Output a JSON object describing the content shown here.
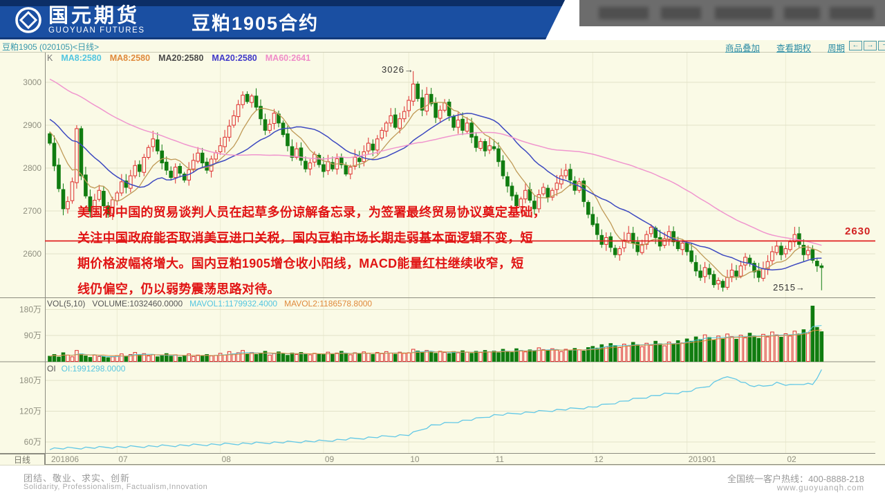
{
  "header": {
    "logo_cn": "国元期货",
    "logo_en": "GUOYUAN FUTURES",
    "title": "豆粕1905合约"
  },
  "toolbar": {
    "links": [
      {
        "label": "商品叠加"
      },
      {
        "label": "查看期权"
      },
      {
        "label": "周期"
      }
    ],
    "buttons": [
      {
        "glyph": "←"
      },
      {
        "glyph": "→"
      },
      {
        "glyph": "−"
      }
    ]
  },
  "chart_header": {
    "instrument": "豆粕1905 (020105)<日线>",
    "k_label": "K",
    "ma_labels": [
      {
        "text": "MA8:2580",
        "color": "#53C6E0"
      },
      {
        "text": "MA8:2580",
        "color": "#E08A3C"
      },
      {
        "text": "MA20:2580",
        "color": "#4A4A4A"
      },
      {
        "text": "MA20:2580",
        "color": "#4038C8"
      },
      {
        "text": "MA60:2641",
        "color": "#F08CC8"
      }
    ]
  },
  "vol_header": {
    "indicator": "VOL(5,10)",
    "volume": "VOLUME:1032460.0000",
    "mavol1": "MAVOL1:1179932.4000",
    "mavol2": "MAVOL2:1186578.8000",
    "mavol1_color": "#53C6E0",
    "mavol2_color": "#E08A3C"
  },
  "oi_header": {
    "label": "OI",
    "value": "OI:1991298.0000",
    "value_color": "#53C6E0"
  },
  "annotation": {
    "lines": [
      "美国和中国的贸易谈判人员在起草多份谅解备忘录，为签署最终贸易协议奠定基础，",
      "关注中国政府能否取消美豆进口关税，国内豆粕市场长期走弱基本面逻辑不变，短",
      "期价格波幅将增大。国内豆粕1905增仓收小阳线，MACD能量红柱继续收窄，短",
      "线仍偏空，仍以弱势震荡思路对待。"
    ]
  },
  "markers": {
    "high_value": "3026",
    "low_value": "2515",
    "support_value": "2630"
  },
  "icons": {
    "arrow_right": "→"
  },
  "axis": {
    "period_label": "日线",
    "price_ticks": [
      3000,
      2900,
      2800,
      2700,
      2600
    ],
    "vol_ticks": [
      {
        "v": 180,
        "label": "180万"
      },
      {
        "v": 90,
        "label": "90万"
      }
    ],
    "oi_ticks": [
      {
        "v": 180,
        "label": "180万"
      },
      {
        "v": 120,
        "label": "120万"
      },
      {
        "v": 60,
        "label": "60万"
      }
    ],
    "month_ticks": [
      {
        "i": 0,
        "label": "201806"
      },
      {
        "i": 15,
        "label": "07"
      },
      {
        "i": 38,
        "label": "08"
      },
      {
        "i": 61,
        "label": "09"
      },
      {
        "i": 80,
        "label": "10"
      },
      {
        "i": 99,
        "label": "11"
      },
      {
        "i": 121,
        "label": "12"
      },
      {
        "i": 142,
        "label": "201901"
      },
      {
        "i": 164,
        "label": "02"
      }
    ]
  },
  "footer": {
    "slogan_cn": "团结、敬业、求实、创新",
    "slogan_en": "Solidarity, Professionalism, Factualism,Innovation",
    "hotline": "全国统一客户热线：400-8888-218",
    "website": "www.guoyuanqh.com"
  },
  "chart_data": {
    "type": "candlestick_with_volume_and_oi",
    "title": "豆粕1905 日线",
    "price_range_visible": [
      2498,
      3043
    ],
    "marked_high": 3026,
    "marked_low": 2515,
    "support_line": 2630,
    "legend": [
      "MA8",
      "MA8",
      "MA20",
      "MA20",
      "MA60",
      "VOL(5,10)",
      "MAVOL1",
      "MAVOL2",
      "OI"
    ],
    "colors": {
      "up": "#DE2C2C",
      "down": "#107C10",
      "background": "#FAFAE6",
      "ma8_cyan": "#53C6E0",
      "ma8_khaki": "#C59B56",
      "ma20_blue": "#3D49C0",
      "ma60_pink": "#F095CE",
      "mavol1": "#53C6E0",
      "mavol2": "#E08A3C",
      "oi_line": "#62C8E6",
      "support": "#E02222"
    },
    "closes": [
      2858,
      2805,
      2752,
      2705,
      2722,
      2768,
      2892,
      2782,
      2735,
      2698,
      2725,
      2748,
      2712,
      2692,
      2726,
      2742,
      2768,
      2755,
      2782,
      2806,
      2792,
      2825,
      2848,
      2868,
      2840,
      2812,
      2795,
      2778,
      2802,
      2788,
      2772,
      2796,
      2818,
      2835,
      2812,
      2795,
      2821,
      2836,
      2852,
      2872,
      2898,
      2922,
      2948,
      2970,
      2955,
      2968,
      2942,
      2915,
      2888,
      2902,
      2928,
      2905,
      2878,
      2852,
      2825,
      2845,
      2818,
      2798,
      2812,
      2832,
      2808,
      2792,
      2815,
      2798,
      2822,
      2808,
      2786,
      2802,
      2825,
      2815,
      2838,
      2858,
      2842,
      2868,
      2888,
      2905,
      2922,
      2895,
      2915,
      2932,
      2958,
      2996,
      2962,
      2935,
      2972,
      2950,
      2918,
      2935,
      2952,
      2922,
      2895,
      2912,
      2888,
      2905,
      2872,
      2848,
      2862,
      2840,
      2852,
      2845,
      2815,
      2782,
      2758,
      2735,
      2712,
      2728,
      2748,
      2725,
      2705,
      2738,
      2755,
      2732,
      2748,
      2765,
      2782,
      2795,
      2772,
      2748,
      2768,
      2722,
      2692,
      2668,
      2645,
      2622,
      2638,
      2615,
      2598,
      2612,
      2632,
      2648,
      2625,
      2605,
      2622,
      2645,
      2662,
      2638,
      2618,
      2635,
      2652,
      2628,
      2612,
      2625,
      2605,
      2582,
      2560,
      2545,
      2568,
      2552,
      2528,
      2538,
      2522,
      2545,
      2562,
      2548,
      2572,
      2592,
      2578,
      2558,
      2545,
      2565,
      2582,
      2605,
      2618,
      2598,
      2612,
      2628,
      2645,
      2622,
      2598,
      2608,
      2585,
      2572,
      2568
    ],
    "overrides": {
      "81": {
        "high": 3026
      },
      "172": {
        "low": 2515
      }
    },
    "volumes": [
      18,
      24,
      15,
      30,
      22,
      16,
      38,
      26,
      19,
      14,
      22,
      17,
      17,
      13,
      16,
      20,
      26,
      18,
      24,
      31,
      22,
      27,
      19,
      24,
      16,
      21,
      27,
      18,
      23,
      15,
      20,
      26,
      17,
      22,
      18,
      24,
      19,
      21,
      28,
      22,
      34,
      26,
      30,
      38,
      25,
      31,
      24,
      28,
      35,
      22,
      27,
      33,
      26,
      21,
      29,
      24,
      31,
      26,
      23,
      28,
      25,
      26,
      32,
      24,
      29,
      35,
      27,
      23,
      30,
      26,
      33,
      28,
      24,
      31,
      27,
      34,
      29,
      25,
      32,
      28,
      30,
      42,
      36,
      31,
      38,
      33,
      28,
      35,
      31,
      27,
      34,
      30,
      37,
      32,
      28,
      35,
      31,
      38,
      33,
      36,
      30,
      42,
      35,
      31,
      44,
      38,
      33,
      40,
      36,
      47,
      41,
      36,
      44,
      39,
      34,
      42,
      37,
      45,
      40,
      36,
      48,
      52,
      46,
      58,
      50,
      62,
      55,
      48,
      60,
      53,
      66,
      58,
      51,
      63,
      56,
      70,
      61,
      54,
      67,
      59,
      72,
      64,
      78,
      70,
      85,
      76,
      92,
      83,
      74,
      88,
      79,
      95,
      86,
      77,
      91,
      82,
      98,
      88,
      80,
      94,
      85,
      102,
      92,
      84,
      96,
      88,
      105,
      95,
      110,
      100,
      192,
      118,
      103
    ],
    "oi_anchors": [
      [
        0,
        47
      ],
      [
        20,
        51
      ],
      [
        40,
        56
      ],
      [
        61,
        62
      ],
      [
        80,
        74
      ],
      [
        85,
        92
      ],
      [
        95,
        105
      ],
      [
        99,
        112
      ],
      [
        110,
        120
      ],
      [
        121,
        128
      ],
      [
        130,
        143
      ],
      [
        136,
        152
      ],
      [
        142,
        158
      ],
      [
        147,
        170
      ],
      [
        150,
        186
      ],
      [
        153,
        183
      ],
      [
        156,
        170
      ],
      [
        159,
        168
      ],
      [
        162,
        175
      ],
      [
        165,
        170
      ],
      [
        168,
        174
      ],
      [
        170,
        172
      ],
      [
        172,
        199
      ]
    ],
    "ma_prehistory": [
      3150,
      3145,
      3141,
      3136,
      3131,
      3127,
      3122,
      3117,
      3113,
      3108,
      3103,
      3099,
      3094,
      3089,
      3085,
      3080,
      3075,
      3071,
      3066,
      3061,
      3057,
      3052,
      3047,
      3043,
      3038,
      3033,
      3029,
      3024,
      3019,
      3015,
      3010,
      3005,
      3001,
      2996,
      2991,
      2987,
      2982,
      2977,
      2973,
      2968,
      2963,
      2959,
      2954,
      2949,
      2945,
      2940,
      2935,
      2931,
      2926,
      2921,
      2917,
      2912,
      2907,
      2903,
      2898,
      2893,
      2889,
      2884,
      2879,
      2875
    ]
  }
}
